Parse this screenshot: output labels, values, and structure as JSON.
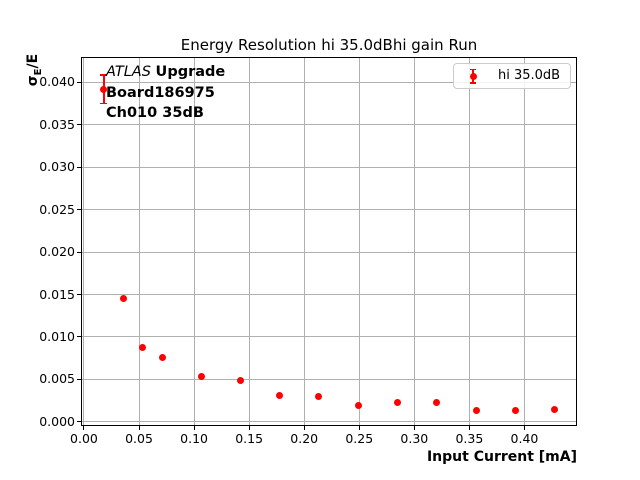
{
  "figure": {
    "title": "Energy Resolution hi 35.0dBhi gain Run"
  },
  "annotation": {
    "experiment_italic": "ATLAS",
    "experiment_bold": "Upgrade",
    "board": "Board186975",
    "channel": "Ch010 35dB"
  },
  "legend": {
    "entry_label": "hi 35.0dB"
  },
  "axes": {
    "xlabel": "Input Current [mA]",
    "ylabel_sigma": "σ",
    "ylabel_sub": "E",
    "ylabel_rest": "/E"
  },
  "colors": {
    "series": "#ff0000",
    "grid": "#b0b0b0",
    "spine": "#000000",
    "legend_border": "#cccccc",
    "text": "#000000"
  },
  "chart_data": {
    "type": "scatter",
    "title": "Energy Resolution hi 35.0dBhi gain Run",
    "xlabel": "Input Current [mA]",
    "ylabel": "σ_E/E",
    "grid": true,
    "legend_position": "upper right",
    "legend_entries": [
      "hi 35.0dB"
    ],
    "xlim": [
      -0.0027,
      0.4477
    ],
    "ylim": [
      -0.0005,
      0.043
    ],
    "xticks": {
      "values": [
        0.0,
        0.05,
        0.1,
        0.15,
        0.2,
        0.25,
        0.3,
        0.35,
        0.4
      ],
      "labels": [
        "0.00",
        "0.05",
        "0.10",
        "0.15",
        "0.20",
        "0.25",
        "0.30",
        "0.35",
        "0.40"
      ]
    },
    "yticks": {
      "values": [
        0.0,
        0.005,
        0.01,
        0.015,
        0.02,
        0.025,
        0.03,
        0.035,
        0.04
      ],
      "labels": [
        "0.000",
        "0.005",
        "0.010",
        "0.015",
        "0.020",
        "0.025",
        "0.030",
        "0.035",
        "0.040"
      ]
    },
    "series": [
      {
        "name": "hi 35.0dB",
        "color": "#ff0000",
        "marker": "circle",
        "points": [
          {
            "x": 0.018,
            "y": 0.0392,
            "yerr": 0.0017
          },
          {
            "x": 0.036,
            "y": 0.0145
          },
          {
            "x": 0.053,
            "y": 0.0088
          },
          {
            "x": 0.071,
            "y": 0.0076
          },
          {
            "x": 0.107,
            "y": 0.0053
          },
          {
            "x": 0.142,
            "y": 0.0049
          },
          {
            "x": 0.178,
            "y": 0.0031
          },
          {
            "x": 0.213,
            "y": 0.003
          },
          {
            "x": 0.249,
            "y": 0.0019
          },
          {
            "x": 0.285,
            "y": 0.0023
          },
          {
            "x": 0.32,
            "y": 0.0023
          },
          {
            "x": 0.356,
            "y": 0.0013
          },
          {
            "x": 0.392,
            "y": 0.0013
          },
          {
            "x": 0.427,
            "y": 0.0014
          }
        ]
      }
    ]
  }
}
